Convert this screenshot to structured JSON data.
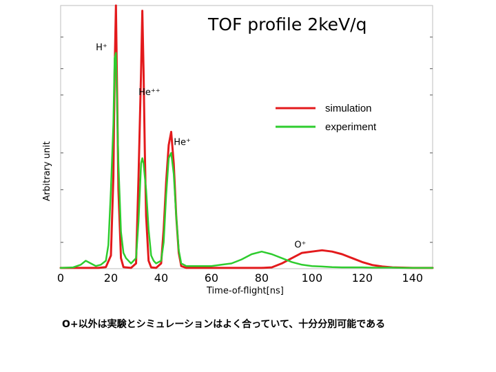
{
  "chart_data": {
    "type": "line",
    "title": "TOF profile   2keV/q",
    "xlabel": "Time-of-flight[ns]",
    "ylabel": "Arbitrary unit",
    "xlim": [
      0,
      148
    ],
    "ylim": [
      0,
      1
    ],
    "x_ticks": [
      0,
      20,
      40,
      60,
      80,
      100,
      120,
      140
    ],
    "y_ticks": [
      0.1,
      0.3,
      0.44,
      0.66,
      0.76,
      0.88
    ],
    "y_tick_labels_shown": false,
    "grid": false,
    "legend_position": "upper-right",
    "series": [
      {
        "name": "simulation",
        "color": "#e31a1c",
        "x": [
          0,
          5,
          10,
          15,
          18,
          20,
          21,
          21.5,
          22,
          22.5,
          23,
          24,
          25,
          28,
          30,
          31,
          32,
          32.5,
          33,
          33.5,
          34,
          35,
          36,
          38,
          40,
          41,
          42,
          43,
          44,
          45,
          46,
          47,
          48,
          50,
          55,
          60,
          70,
          80,
          84,
          88,
          92,
          96,
          100,
          104,
          108,
          112,
          116,
          120,
          124,
          128,
          132,
          136,
          140,
          144,
          148
        ],
        "values": [
          0.003,
          0.003,
          0.003,
          0.003,
          0.006,
          0.05,
          0.35,
          0.75,
          1.0,
          0.65,
          0.3,
          0.04,
          0.006,
          0.003,
          0.02,
          0.35,
          0.75,
          0.98,
          0.75,
          0.45,
          0.2,
          0.03,
          0.005,
          0.003,
          0.02,
          0.15,
          0.33,
          0.47,
          0.52,
          0.4,
          0.2,
          0.06,
          0.01,
          0.003,
          0.003,
          0.003,
          0.003,
          0.003,
          0.005,
          0.02,
          0.04,
          0.06,
          0.065,
          0.07,
          0.065,
          0.055,
          0.04,
          0.025,
          0.014,
          0.008,
          0.005,
          0.004,
          0.003,
          0.003,
          0.003
        ]
      },
      {
        "name": "experiment",
        "color": "#2ecc2e",
        "x": [
          0,
          5,
          8,
          10,
          12,
          14,
          16,
          18,
          19,
          20,
          21,
          21.5,
          22,
          22.5,
          23,
          24,
          25,
          26,
          28,
          30,
          31,
          32,
          32.5,
          33,
          33.5,
          34,
          35,
          36,
          37,
          38,
          40,
          41,
          42,
          43,
          44,
          45,
          46,
          47,
          48,
          50,
          55,
          60,
          64,
          68,
          72,
          76,
          80,
          84,
          88,
          92,
          96,
          100,
          104,
          108,
          112,
          116,
          120,
          124,
          128,
          132,
          136,
          140,
          144,
          148
        ],
        "values": [
          0.003,
          0.005,
          0.015,
          0.03,
          0.02,
          0.01,
          0.015,
          0.03,
          0.09,
          0.3,
          0.55,
          0.8,
          0.82,
          0.6,
          0.4,
          0.14,
          0.06,
          0.04,
          0.02,
          0.04,
          0.18,
          0.4,
          0.42,
          0.4,
          0.35,
          0.3,
          0.15,
          0.05,
          0.03,
          0.02,
          0.03,
          0.1,
          0.28,
          0.42,
          0.44,
          0.36,
          0.2,
          0.07,
          0.02,
          0.01,
          0.01,
          0.01,
          0.015,
          0.02,
          0.035,
          0.055,
          0.065,
          0.055,
          0.04,
          0.025,
          0.015,
          0.01,
          0.008,
          0.006,
          0.005,
          0.005,
          0.005,
          0.004,
          0.004,
          0.004,
          0.003,
          0.003,
          0.003,
          0.003
        ]
      }
    ],
    "annotations": [
      {
        "text": "H⁺",
        "x": 14,
        "y": 0.83
      },
      {
        "text": "He⁺⁺",
        "x": 31,
        "y": 0.66
      },
      {
        "text": "He⁺",
        "x": 45,
        "y": 0.47
      },
      {
        "text": "O⁺",
        "x": 93,
        "y": 0.08
      }
    ]
  },
  "caption": "O+以外は実験とシミュレーションはよく合っていて、十分分別可能である"
}
